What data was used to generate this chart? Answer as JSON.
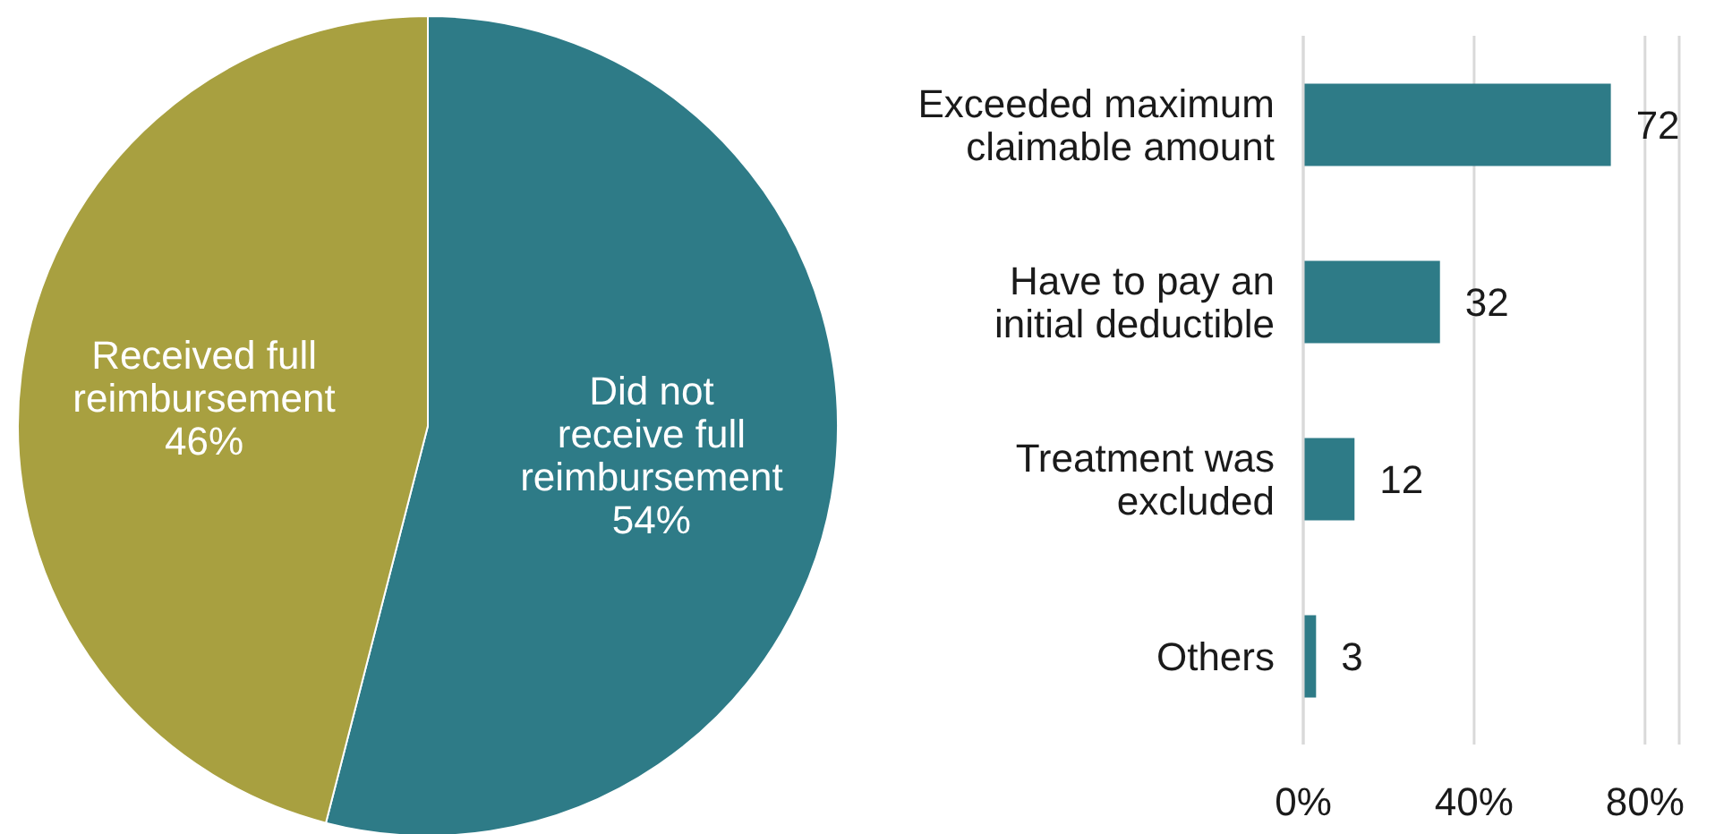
{
  "chart_data": [
    {
      "type": "pie",
      "categories": [
        "Did not receive full reimbursement",
        "Received full reimbursement"
      ],
      "values": [
        54,
        46
      ],
      "colors": [
        "#2e7b87",
        "#a8a040"
      ],
      "value_labels": [
        "54%",
        "46%"
      ]
    },
    {
      "type": "bar",
      "orientation": "horizontal",
      "categories": [
        "Exceeded maximum claimable amount",
        "Have to pay an initial deductible",
        "Treatment was excluded",
        "Others"
      ],
      "values": [
        72,
        32,
        12,
        3
      ],
      "color": "#2e7b87",
      "data_labels": true,
      "xlim": [
        0,
        88
      ],
      "xticks": [
        {
          "value": 0,
          "label": "0%"
        },
        {
          "value": 40,
          "label": "40%"
        },
        {
          "value": 80,
          "label": "80%"
        }
      ],
      "grid": "x"
    }
  ]
}
